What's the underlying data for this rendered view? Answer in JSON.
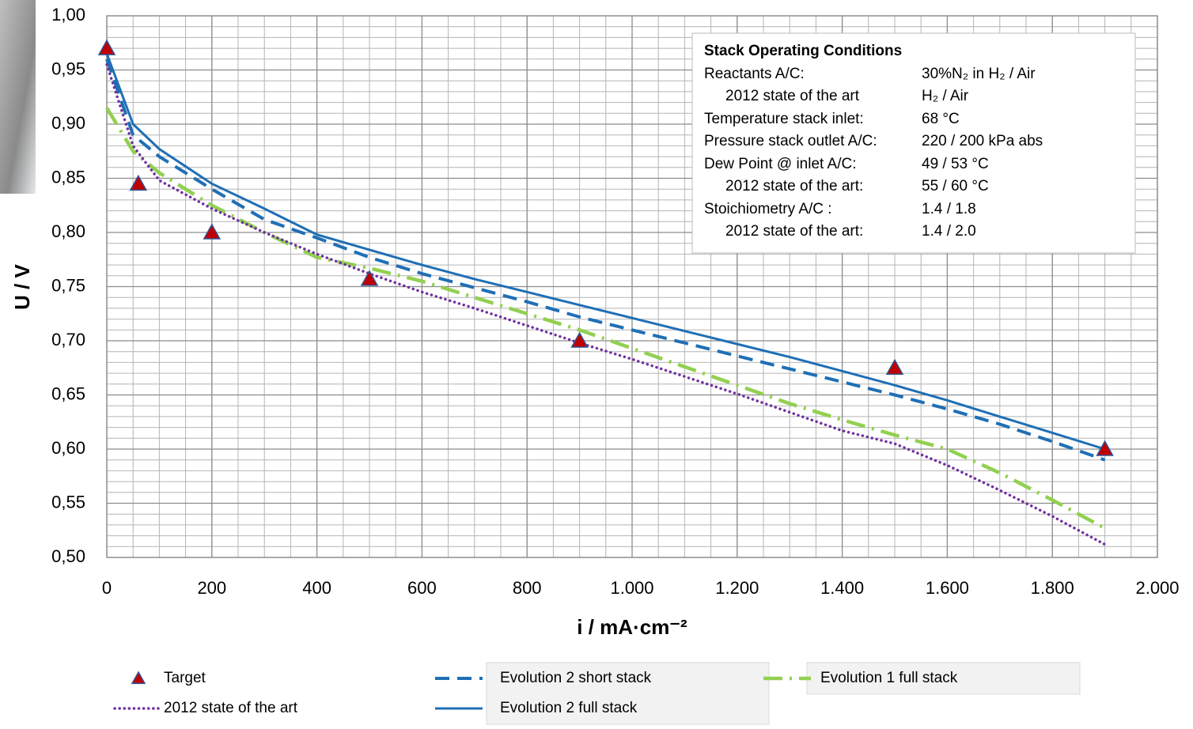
{
  "chart_data": {
    "type": "line",
    "xlabel": "i / mA·cm⁻²",
    "ylabel": "U / V",
    "xlim": [
      0,
      2000
    ],
    "ylim": [
      0.5,
      1.0
    ],
    "xticks": [
      0,
      200,
      400,
      600,
      800,
      {
        "value": 1000,
        "label": "1.000"
      },
      {
        "value": 1200,
        "label": "1.200"
      },
      {
        "value": 1400,
        "label": "1.400"
      },
      {
        "value": 1600,
        "label": "1.600"
      },
      {
        "value": 1800,
        "label": "1.800"
      },
      {
        "value": 2000,
        "label": "2.000"
      }
    ],
    "yticks": [
      {
        "value": 0.5,
        "label": "0,50"
      },
      {
        "value": 0.55,
        "label": "0,55"
      },
      {
        "value": 0.6,
        "label": "0,60"
      },
      {
        "value": 0.65,
        "label": "0,65"
      },
      {
        "value": 0.7,
        "label": "0,70"
      },
      {
        "value": 0.75,
        "label": "0,75"
      },
      {
        "value": 0.8,
        "label": "0,80"
      },
      {
        "value": 0.85,
        "label": "0,85"
      },
      {
        "value": 0.9,
        "label": "0,90"
      },
      {
        "value": 0.95,
        "label": "0,95"
      },
      {
        "value": 1.0,
        "label": "1,00"
      }
    ],
    "grid": true,
    "minor_grid": {
      "x": 50,
      "y": 0.01
    },
    "series": [
      {
        "name": "Target",
        "color": "#c00000",
        "style": "markers",
        "x": [
          0,
          60,
          200,
          500,
          900,
          1500,
          1900
        ],
        "values": [
          0.97,
          0.845,
          0.8,
          0.757,
          0.7,
          0.675,
          0.6
        ]
      },
      {
        "name": "Evolution 2 short stack",
        "color": "#1f6fb5",
        "style": "dashed",
        "x": [
          0,
          50,
          100,
          200,
          300,
          400,
          500,
          600,
          700,
          800,
          900,
          1000,
          1100,
          1200,
          1300,
          1400,
          1500,
          1600,
          1700,
          1800,
          1900
        ],
        "values": [
          0.96,
          0.89,
          0.87,
          0.84,
          0.812,
          0.795,
          0.777,
          0.762,
          0.749,
          0.736,
          0.722,
          0.71,
          0.698,
          0.686,
          0.674,
          0.662,
          0.65,
          0.637,
          0.623,
          0.607,
          0.59
        ]
      },
      {
        "name": "Evolution 1 full stack",
        "color": "#92d050",
        "style": "dashdot",
        "x": [
          0,
          50,
          100,
          200,
          300,
          400,
          500,
          600,
          700,
          800,
          900,
          1000,
          1100,
          1200,
          1300,
          1400,
          1500,
          1600,
          1700,
          1800,
          1900
        ],
        "values": [
          0.915,
          0.875,
          0.855,
          0.825,
          0.8,
          0.777,
          0.767,
          0.755,
          0.74,
          0.725,
          0.71,
          0.693,
          0.676,
          0.659,
          0.642,
          0.627,
          0.613,
          0.6,
          0.578,
          0.553,
          0.527
        ]
      },
      {
        "name": "2012 state of the art",
        "color": "#7030a0",
        "style": "dotted",
        "x": [
          0,
          50,
          100,
          200,
          300,
          400,
          500,
          600,
          700,
          800,
          900,
          1000,
          1100,
          1200,
          1300,
          1400,
          1500,
          1600,
          1700,
          1800,
          1900
        ],
        "values": [
          0.955,
          0.88,
          0.848,
          0.822,
          0.8,
          0.78,
          0.762,
          0.745,
          0.73,
          0.714,
          0.698,
          0.683,
          0.667,
          0.651,
          0.634,
          0.617,
          0.605,
          0.585,
          0.562,
          0.538,
          0.512
        ]
      },
      {
        "name": "Evolution 2 full stack",
        "color": "#1f6fb5",
        "style": "solid",
        "x": [
          0,
          50,
          100,
          200,
          300,
          400,
          500,
          600,
          700,
          800,
          900,
          1000,
          1100,
          1200,
          1300,
          1400,
          1500,
          1600,
          1700,
          1800,
          1900
        ],
        "values": [
          0.965,
          0.9,
          0.877,
          0.845,
          0.822,
          0.798,
          0.784,
          0.77,
          0.757,
          0.745,
          0.733,
          0.721,
          0.709,
          0.697,
          0.685,
          0.672,
          0.659,
          0.645,
          0.63,
          0.615,
          0.6
        ]
      }
    ],
    "conditions": {
      "title": "Stack Operating Conditions",
      "rows": [
        [
          "Reactants A/C:",
          "30%N₂ in H₂ / Air"
        ],
        [
          "2012 state of the art",
          "H₂ / Air"
        ],
        [
          "Temperature stack inlet:",
          "68 °C"
        ],
        [
          "Pressure stack outlet A/C:",
          "220 / 200 kPa abs"
        ],
        [
          "Dew Point @ inlet A/C:",
          "49 / 53 °C"
        ],
        [
          "2012 state of the art:",
          "55 / 60 °C"
        ],
        [
          "Stoichiometry A/C :",
          "1.4 / 1.8"
        ],
        [
          "2012 state of the art:",
          "1.4 / 2.0"
        ]
      ]
    }
  }
}
